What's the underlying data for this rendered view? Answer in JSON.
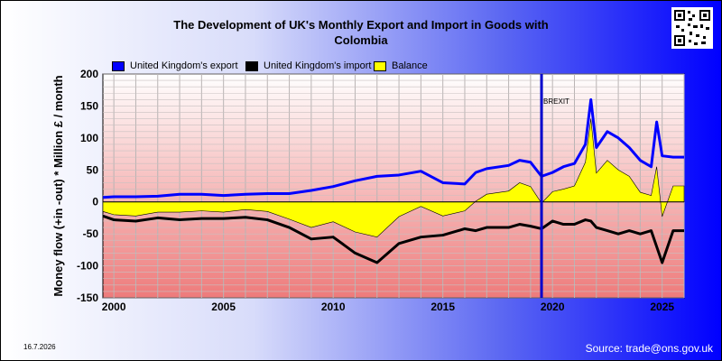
{
  "title_line1": "The Development of UK's Monthly Export and Import in Goods with",
  "title_line2": "Colombia",
  "date": "16.7.2026",
  "source": "Source: trade@ons.gov.uk",
  "colors": {
    "export": "#0000ff",
    "import": "#000000",
    "balance": "#ffff00",
    "annotation_line": "#0000cc"
  },
  "chart_data": {
    "type": "line",
    "title": "The Development of UK's Monthly Export and Import in Goods with Colombia",
    "xlabel": "",
    "ylabel": "Money flow (+in -out) * Million £ / month",
    "ylim": [
      -150,
      200
    ],
    "xlim": [
      1999.5,
      2026.0
    ],
    "yticks": [
      -150,
      -100,
      -50,
      0,
      50,
      100,
      150,
      200
    ],
    "xticks": [
      2000,
      2005,
      2010,
      2015,
      2020,
      2025
    ],
    "grid": true,
    "legend_position": "top",
    "annotation": {
      "label": "BREXIT",
      "x": 2019.5
    },
    "series": [
      {
        "name": "United Kingdom's export",
        "key": "export",
        "x": [
          1999.5,
          2000,
          2001,
          2002,
          2003,
          2004,
          2005,
          2006,
          2007,
          2008,
          2009,
          2010,
          2011,
          2012,
          2013,
          2014,
          2015,
          2016,
          2016.5,
          2017,
          2018,
          2018.5,
          2019,
          2019.5,
          2020,
          2020.5,
          2021,
          2021.5,
          2021.75,
          2022,
          2022.5,
          2023,
          2023.5,
          2024,
          2024.5,
          2024.75,
          2025,
          2025.5,
          2026
        ],
        "values": [
          7,
          8,
          8,
          9,
          12,
          12,
          10,
          12,
          13,
          13,
          18,
          24,
          33,
          40,
          42,
          48,
          30,
          28,
          46,
          52,
          57,
          65,
          62,
          40,
          46,
          55,
          60,
          90,
          160,
          85,
          110,
          100,
          85,
          65,
          55,
          125,
          72,
          70,
          70
        ]
      },
      {
        "name": "United Kingdom's import",
        "key": "import",
        "x": [
          1999.5,
          2000,
          2001,
          2002,
          2003,
          2004,
          2005,
          2006,
          2007,
          2008,
          2009,
          2010,
          2011,
          2012,
          2013,
          2014,
          2015,
          2016,
          2016.5,
          2017,
          2018,
          2018.5,
          2019,
          2019.5,
          2020,
          2020.5,
          2021,
          2021.5,
          2021.75,
          2022,
          2022.5,
          2023,
          2023.5,
          2024,
          2024.5,
          2024.75,
          2025,
          2025.5,
          2026
        ],
        "values": [
          -22,
          -28,
          -30,
          -25,
          -28,
          -26,
          -26,
          -24,
          -28,
          -40,
          -58,
          -55,
          -80,
          -95,
          -65,
          -55,
          -52,
          -42,
          -45,
          -40,
          -40,
          -35,
          -38,
          -42,
          -30,
          -35,
          -35,
          -28,
          -30,
          -40,
          -45,
          -50,
          -45,
          -50,
          -45,
          -70,
          -95,
          -45,
          -45
        ]
      },
      {
        "name": "Balance",
        "key": "balance",
        "x": [
          1999.5,
          2000,
          2001,
          2002,
          2003,
          2004,
          2005,
          2006,
          2007,
          2008,
          2009,
          2010,
          2011,
          2012,
          2013,
          2014,
          2015,
          2016,
          2016.5,
          2017,
          2018,
          2018.5,
          2019,
          2019.5,
          2020,
          2020.5,
          2021,
          2021.5,
          2021.75,
          2022,
          2022.5,
          2023,
          2023.5,
          2024,
          2024.5,
          2024.75,
          2025,
          2025.5,
          2026
        ],
        "values": [
          -15,
          -20,
          -22,
          -16,
          -16,
          -14,
          -16,
          -12,
          -15,
          -27,
          -40,
          -31,
          -47,
          -55,
          -23,
          -7,
          -22,
          -14,
          1,
          12,
          17,
          30,
          24,
          -2,
          16,
          20,
          25,
          62,
          130,
          45,
          65,
          50,
          40,
          15,
          10,
          55,
          -23,
          25,
          25
        ]
      }
    ]
  }
}
